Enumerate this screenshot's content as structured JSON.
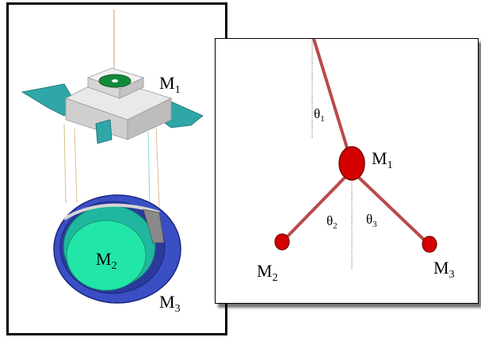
{
  "left_panel": {
    "labels": {
      "m1": "M",
      "m1_sub": "1",
      "m2": "M",
      "m2_sub": "2",
      "m3": "M",
      "m3_sub": "3"
    }
  },
  "right_panel": {
    "labels": {
      "m1": "M",
      "m1_sub": "1",
      "m2": "M",
      "m2_sub": "2",
      "m3": "M",
      "m3_sub": "3",
      "theta1": "θ",
      "theta1_sub": "1",
      "theta2": "θ",
      "theta2_sub": "2",
      "theta3": "θ",
      "theta3_sub": "3"
    },
    "colors": {
      "rod": "#b94a4a",
      "mass": "#d40000",
      "mass_outline": "#7a0000"
    }
  },
  "colors": {
    "platform_gray": "#d9d9d9",
    "platform_teal": "#2fa7a9",
    "ring_blue": "#3a4fc4",
    "mirror_green": "#22e6a8"
  }
}
